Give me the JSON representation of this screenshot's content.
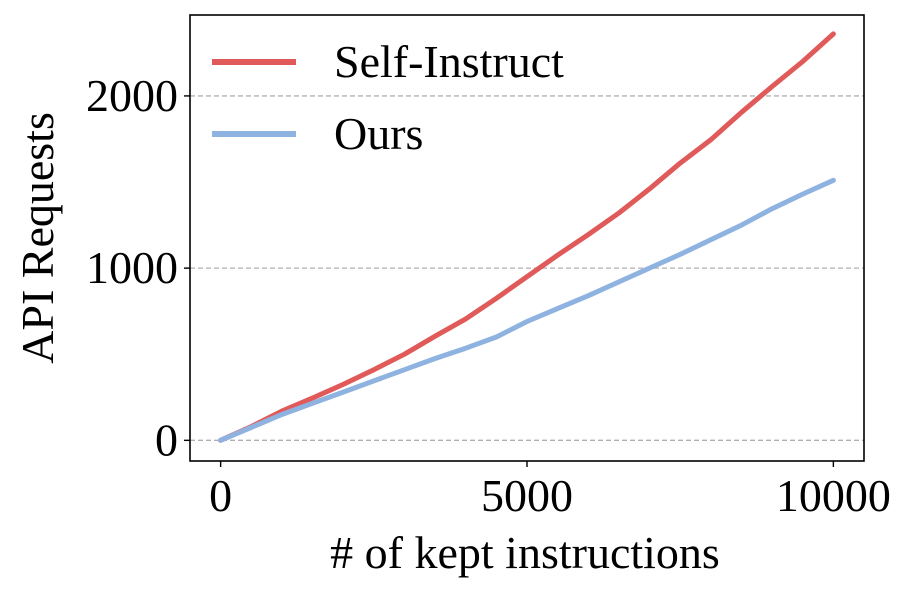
{
  "chart_data": {
    "type": "line",
    "xlabel": "# of kept instructions",
    "ylabel": "API Requests",
    "xlim": [
      -500,
      10500
    ],
    "ylim": [
      -120,
      2470
    ],
    "xticks": [
      0,
      5000,
      10000
    ],
    "xtick_labels": [
      "0",
      "5000",
      "10000"
    ],
    "yticks": [
      0,
      1000,
      2000
    ],
    "ytick_labels": [
      "0",
      "1000",
      "2000"
    ],
    "grid": "horizontal dashed at y ticks",
    "legend": "top-left",
    "series": [
      {
        "name": "Self-Instruct",
        "color": "#e05a5a",
        "x": [
          0,
          500,
          1000,
          1500,
          2000,
          2500,
          3000,
          3500,
          4000,
          4500,
          5000,
          5500,
          6000,
          6500,
          7000,
          7500,
          8000,
          8500,
          9000,
          9500,
          10000
        ],
        "y": [
          0,
          80,
          170,
          245,
          325,
          410,
          500,
          605,
          705,
          825,
          950,
          1075,
          1195,
          1320,
          1460,
          1610,
          1745,
          1905,
          2055,
          2200,
          2360
        ]
      },
      {
        "name": "Ours",
        "color": "#8fb3e0",
        "x": [
          0,
          500,
          1000,
          1500,
          2000,
          2500,
          3000,
          3500,
          4000,
          4500,
          5000,
          5500,
          6000,
          6500,
          7000,
          7500,
          8000,
          8500,
          9000,
          9500,
          10000
        ],
        "y": [
          0,
          75,
          150,
          215,
          280,
          345,
          410,
          475,
          535,
          600,
          690,
          765,
          840,
          920,
          1000,
          1080,
          1165,
          1250,
          1345,
          1430,
          1510
        ]
      }
    ]
  }
}
